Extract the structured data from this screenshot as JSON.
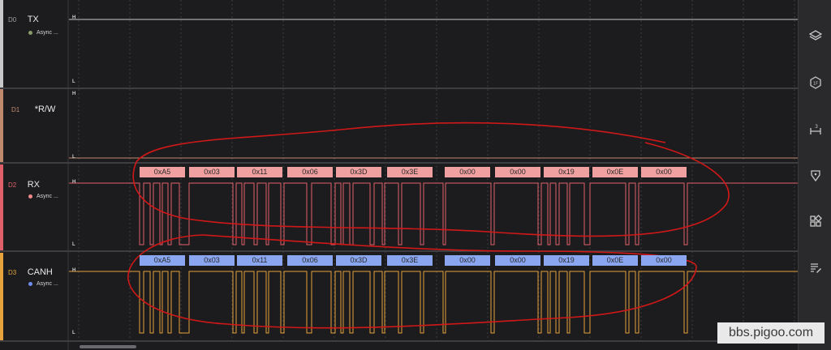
{
  "colors": {
    "background": "#1c1c1e",
    "d0": "#c8c8c8",
    "d1": "#c08a6e",
    "d2": "#e0606a",
    "d3": "#e6a23c",
    "rx_decode": "#f0a0a0",
    "canh_decode": "#8aa6f0",
    "annotation": "#d01818"
  },
  "channels": [
    {
      "id": "D0",
      "name": "TX",
      "analyzer": "Async ...",
      "dot_color": "#8c9b6a"
    },
    {
      "id": "D1",
      "name": "*R/W"
    },
    {
      "id": "D2",
      "name": "RX",
      "analyzer": "Async ...",
      "dot_color": "#f08a8a"
    },
    {
      "id": "D3",
      "name": "CANH",
      "analyzer": "Async ...",
      "dot_color": "#6e8ef0"
    }
  ],
  "level_labels": {
    "high": "H",
    "low": "L"
  },
  "rx_decoded": [
    "0xA5",
    "0x03",
    "0x11",
    "0x06",
    "0x3D",
    "0x3E",
    "0x00",
    "0x00",
    "0x19",
    "0x0E",
    "0x00"
  ],
  "canh_decoded": [
    "0xA5",
    "0x03",
    "0x11",
    "0x06",
    "0x3D",
    "0x3E",
    "0x00",
    "0x00",
    "0x19",
    "0x0E",
    "0x00"
  ],
  "sidebar_icons": [
    "layers-icon",
    "hex-badge-icon",
    "timing-marker-icon",
    "filter-icon",
    "extensions-icon",
    "notes-icon"
  ],
  "watermark": "bbs.pigoo.com"
}
